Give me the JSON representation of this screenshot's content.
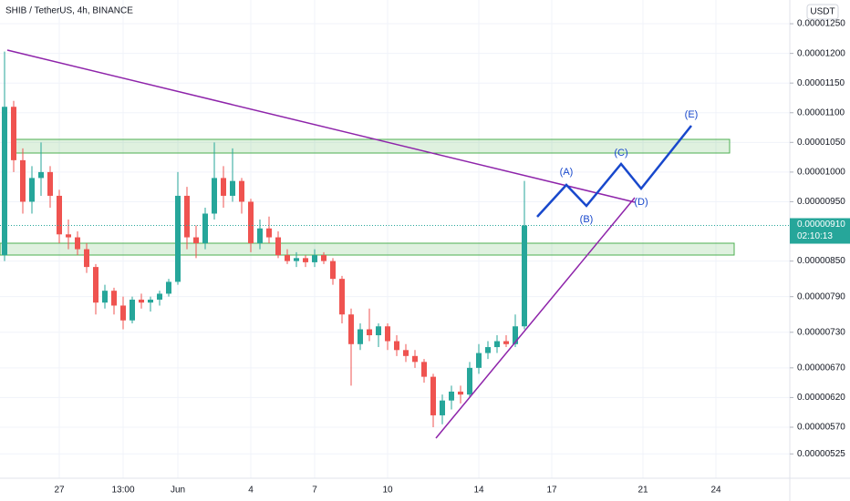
{
  "chart_data": {
    "type": "candlestick",
    "title": "SHIB / TetherUS, 4h, BINANCE",
    "currency": "USDT",
    "categories": [
      null,
      null,
      null,
      null,
      null,
      null,
      "27",
      null,
      null,
      null,
      null,
      null,
      null,
      "13:00",
      null,
      null,
      null,
      null,
      null,
      "Jun",
      null,
      null,
      null,
      null,
      null,
      null,
      null,
      "4",
      null,
      null,
      null,
      null,
      null,
      null,
      "7",
      null,
      null,
      null,
      null,
      null,
      null,
      null,
      "10",
      null,
      null,
      null,
      null,
      null,
      null,
      null,
      null,
      null,
      "14",
      null,
      null,
      null,
      null,
      null,
      null,
      null,
      "17",
      null,
      null,
      null,
      null,
      null,
      null,
      null,
      null,
      null,
      "21",
      null,
      null,
      null,
      null,
      null,
      null,
      null,
      "24",
      null,
      null,
      null,
      null,
      null,
      null,
      null
    ],
    "open": [
      8.6e-06,
      1.11e-05,
      1.02e-05,
      9.5e-06,
      9.9e-06,
      1e-05,
      9.6e-06,
      8.95e-06,
      8.9e-06,
      8.7e-06,
      8.4e-06,
      7.8e-06,
      8e-06,
      7.75e-06,
      7.5e-06,
      7.85e-06,
      7.8e-06,
      7.85e-06,
      7.95e-06,
      8.15e-06,
      9.6e-06,
      8.9e-06,
      8.8e-06,
      9.3e-06,
      9.9e-06,
      9.6e-06,
      9.85e-06,
      9.5e-06,
      8.8e-06,
      9.05e-06,
      8.9e-06,
      8.6e-06,
      8.5e-06,
      8.55e-06,
      8.48e-06,
      8.6e-06,
      8.5e-06,
      8.2e-06,
      7.6e-06,
      7.1e-06,
      7.35e-06,
      7.25e-06,
      7.4e-06,
      7.15e-06,
      7e-06,
      6.9e-06,
      6.8e-06,
      6.55e-06,
      5.9e-06,
      6.15e-06,
      6.3e-06,
      6.25e-06,
      6.7e-06,
      6.95e-06,
      7.05e-06,
      7.15e-06,
      7.1e-06,
      7.4e-06,
      null,
      null,
      null,
      null,
      null,
      null,
      null,
      null,
      null,
      null,
      null,
      null,
      null,
      null,
      null,
      null,
      null,
      null,
      null,
      null,
      null,
      null,
      null,
      null,
      null,
      null,
      null,
      null
    ],
    "high": [
      1.203e-05,
      1.12e-05,
      1.04e-05,
      1.01e-05,
      1.05e-05,
      1.01e-05,
      9.7e-06,
      9.2e-06,
      9e-06,
      8.8e-06,
      8.45e-06,
      8.1e-06,
      8.05e-06,
      7.9e-06,
      7.9e-06,
      7.95e-06,
      7.9e-06,
      8e-06,
      8.2e-06,
      1e-05,
      9.75e-06,
      9.1e-06,
      9.4e-06,
      1.05e-05,
      1.01e-05,
      1.04e-05,
      9.9e-06,
      9.55e-06,
      9.2e-06,
      9.25e-06,
      9e-06,
      8.7e-06,
      8.65e-06,
      8.6e-06,
      8.7e-06,
      8.65e-06,
      8.55e-06,
      8.25e-06,
      7.7e-06,
      7.45e-06,
      7.7e-06,
      7.45e-06,
      7.45e-06,
      7.25e-06,
      7.1e-06,
      7e-06,
      6.85e-06,
      6.6e-06,
      6.25e-06,
      6.4e-06,
      6.4e-06,
      6.8e-06,
      7.1e-06,
      7.15e-06,
      7.25e-06,
      7.25e-06,
      7.6e-06,
      9.85e-06,
      null,
      null,
      null,
      null,
      null,
      null,
      null,
      null,
      null,
      null,
      null,
      null,
      null,
      null,
      null,
      null,
      null,
      null,
      null,
      null,
      null,
      null,
      null,
      null,
      null,
      null,
      null,
      null
    ],
    "low": [
      8.5e-06,
      1e-05,
      9.3e-06,
      9.3e-06,
      9.6e-06,
      9.4e-06,
      8.8e-06,
      8.7e-06,
      8.6e-06,
      8.3e-06,
      7.6e-06,
      7.7e-06,
      7.6e-06,
      7.35e-06,
      7.45e-06,
      7.7e-06,
      7.65e-06,
      7.75e-06,
      7.9e-06,
      8.1e-06,
      8.7e-06,
      8.55e-06,
      8.7e-06,
      9.2e-06,
      9.4e-06,
      9.5e-06,
      9.3e-06,
      8.65e-06,
      8.7e-06,
      8.8e-06,
      8.55e-06,
      8.45e-06,
      8.4e-06,
      8.4e-06,
      8.4e-06,
      8.45e-06,
      8.1e-06,
      7.45e-06,
      6.4e-06,
      7e-06,
      7.15e-06,
      7.05e-06,
      7e-06,
      6.9e-06,
      6.8e-06,
      6.7e-06,
      6.45e-06,
      5.7e-06,
      5.75e-06,
      6e-06,
      6.1e-06,
      6.2e-06,
      6.6e-06,
      6.85e-06,
      6.95e-06,
      7.05e-06,
      7.05e-06,
      7.35e-06,
      null,
      null,
      null,
      null,
      null,
      null,
      null,
      null,
      null,
      null,
      null,
      null,
      null,
      null,
      null,
      null,
      null,
      null,
      null,
      null,
      null,
      null,
      null,
      null,
      null,
      null,
      null,
      null
    ],
    "close": [
      1.11e-05,
      1.02e-05,
      9.5e-06,
      9.9e-06,
      1e-05,
      9.6e-06,
      8.95e-06,
      8.9e-06,
      8.7e-06,
      8.4e-06,
      7.8e-06,
      8e-06,
      7.75e-06,
      7.5e-06,
      7.85e-06,
      7.8e-06,
      7.85e-06,
      7.95e-06,
      8.15e-06,
      9.6e-06,
      8.9e-06,
      8.8e-06,
      9.3e-06,
      9.9e-06,
      9.6e-06,
      9.85e-06,
      9.5e-06,
      8.8e-06,
      9.05e-06,
      8.9e-06,
      8.6e-06,
      8.5e-06,
      8.55e-06,
      8.48e-06,
      8.6e-06,
      8.5e-06,
      8.2e-06,
      7.6e-06,
      7.1e-06,
      7.35e-06,
      7.25e-06,
      7.4e-06,
      7.15e-06,
      7e-06,
      6.9e-06,
      6.8e-06,
      6.55e-06,
      5.9e-06,
      6.15e-06,
      6.3e-06,
      6.25e-06,
      6.7e-06,
      6.95e-06,
      7.05e-06,
      7.15e-06,
      7.1e-06,
      7.4e-06,
      9.1e-06,
      null,
      null,
      null,
      null,
      null,
      null,
      null,
      null,
      null,
      null,
      null,
      null,
      null,
      null,
      null,
      null,
      null,
      null,
      null,
      null,
      null,
      null,
      null,
      null,
      null,
      null,
      null,
      null
    ],
    "up_color": "#26a69a",
    "down_color": "#ef5350",
    "ylim": [
      4.84e-06,
      1.29e-05
    ],
    "yticks": [
      {
        "value": 1.25e-05,
        "label": "0.00001250"
      },
      {
        "value": 1.2e-05,
        "label": "0.00001200"
      },
      {
        "value": 1.15e-05,
        "label": "0.00001150"
      },
      {
        "value": 1.1e-05,
        "label": "0.00001100"
      },
      {
        "value": 1.05e-05,
        "label": "0.00001050"
      },
      {
        "value": 1e-05,
        "label": "0.00001000"
      },
      {
        "value": 9.5e-06,
        "label": "0.00000950"
      },
      {
        "value": 8.5e-06,
        "label": "0.00000850"
      },
      {
        "value": 7.9e-06,
        "label": "0.00000790"
      },
      {
        "value": 7.3e-06,
        "label": "0.00000730"
      },
      {
        "value": 6.7e-06,
        "label": "0.00000670"
      },
      {
        "value": 6.2e-06,
        "label": "0.00000620"
      },
      {
        "value": 5.7e-06,
        "label": "0.00000570"
      },
      {
        "value": 5.25e-06,
        "label": "0.00000525"
      }
    ],
    "last_price": {
      "value": 9.1e-06,
      "label": "0.00000910"
    },
    "countdown": "02:10:13",
    "grid": true,
    "wave_labels": [
      "(A)",
      "(B)",
      "(C)",
      "(D)",
      "(E)"
    ]
  }
}
